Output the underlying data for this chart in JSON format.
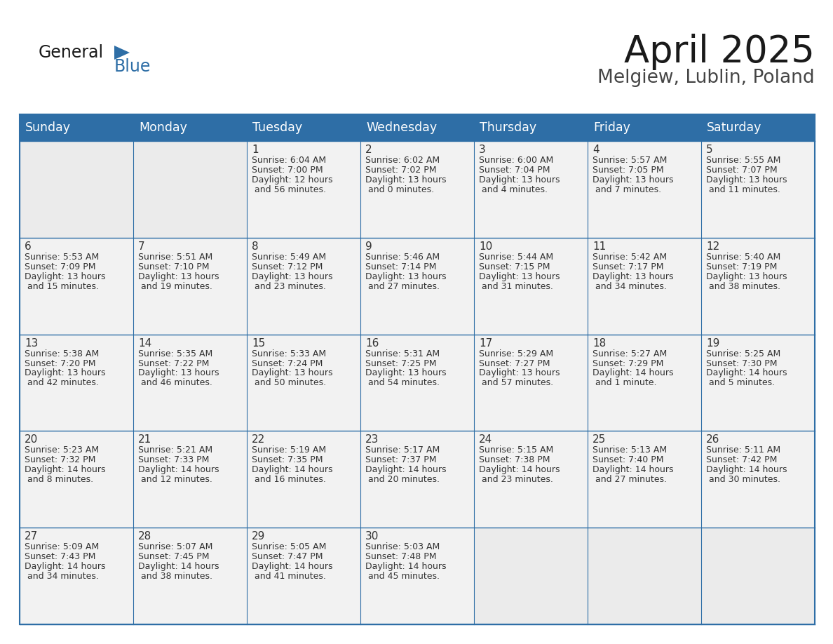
{
  "title": "April 2025",
  "subtitle": "Melgiew, Lublin, Poland",
  "header_bg_color": "#2e6ea6",
  "header_text_color": "#ffffff",
  "cell_bg_empty": "#ebebeb",
  "cell_bg_filled": "#f2f2f2",
  "border_color": "#2e6ea6",
  "text_color": "#333333",
  "days_of_week": [
    "Sunday",
    "Monday",
    "Tuesday",
    "Wednesday",
    "Thursday",
    "Friday",
    "Saturday"
  ],
  "title_fontsize": 38,
  "subtitle_fontsize": 19,
  "header_fontsize": 12.5,
  "day_num_fontsize": 11,
  "cell_text_fontsize": 9,
  "logo_general_color": "#1a1a1a",
  "logo_blue_color": "#2e6ea6",
  "calendar": [
    [
      {
        "day": "",
        "sunrise": "",
        "sunset": "",
        "daylight": ""
      },
      {
        "day": "",
        "sunrise": "",
        "sunset": "",
        "daylight": ""
      },
      {
        "day": "1",
        "sunrise": "6:04 AM",
        "sunset": "7:00 PM",
        "daylight": "12 hours and 56 minutes."
      },
      {
        "day": "2",
        "sunrise": "6:02 AM",
        "sunset": "7:02 PM",
        "daylight": "13 hours and 0 minutes."
      },
      {
        "day": "3",
        "sunrise": "6:00 AM",
        "sunset": "7:04 PM",
        "daylight": "13 hours and 4 minutes."
      },
      {
        "day": "4",
        "sunrise": "5:57 AM",
        "sunset": "7:05 PM",
        "daylight": "13 hours and 7 minutes."
      },
      {
        "day": "5",
        "sunrise": "5:55 AM",
        "sunset": "7:07 PM",
        "daylight": "13 hours and 11 minutes."
      }
    ],
    [
      {
        "day": "6",
        "sunrise": "5:53 AM",
        "sunset": "7:09 PM",
        "daylight": "13 hours and 15 minutes."
      },
      {
        "day": "7",
        "sunrise": "5:51 AM",
        "sunset": "7:10 PM",
        "daylight": "13 hours and 19 minutes."
      },
      {
        "day": "8",
        "sunrise": "5:49 AM",
        "sunset": "7:12 PM",
        "daylight": "13 hours and 23 minutes."
      },
      {
        "day": "9",
        "sunrise": "5:46 AM",
        "sunset": "7:14 PM",
        "daylight": "13 hours and 27 minutes."
      },
      {
        "day": "10",
        "sunrise": "5:44 AM",
        "sunset": "7:15 PM",
        "daylight": "13 hours and 31 minutes."
      },
      {
        "day": "11",
        "sunrise": "5:42 AM",
        "sunset": "7:17 PM",
        "daylight": "13 hours and 34 minutes."
      },
      {
        "day": "12",
        "sunrise": "5:40 AM",
        "sunset": "7:19 PM",
        "daylight": "13 hours and 38 minutes."
      }
    ],
    [
      {
        "day": "13",
        "sunrise": "5:38 AM",
        "sunset": "7:20 PM",
        "daylight": "13 hours and 42 minutes."
      },
      {
        "day": "14",
        "sunrise": "5:35 AM",
        "sunset": "7:22 PM",
        "daylight": "13 hours and 46 minutes."
      },
      {
        "day": "15",
        "sunrise": "5:33 AM",
        "sunset": "7:24 PM",
        "daylight": "13 hours and 50 minutes."
      },
      {
        "day": "16",
        "sunrise": "5:31 AM",
        "sunset": "7:25 PM",
        "daylight": "13 hours and 54 minutes."
      },
      {
        "day": "17",
        "sunrise": "5:29 AM",
        "sunset": "7:27 PM",
        "daylight": "13 hours and 57 minutes."
      },
      {
        "day": "18",
        "sunrise": "5:27 AM",
        "sunset": "7:29 PM",
        "daylight": "14 hours and 1 minute."
      },
      {
        "day": "19",
        "sunrise": "5:25 AM",
        "sunset": "7:30 PM",
        "daylight": "14 hours and 5 minutes."
      }
    ],
    [
      {
        "day": "20",
        "sunrise": "5:23 AM",
        "sunset": "7:32 PM",
        "daylight": "14 hours and 8 minutes."
      },
      {
        "day": "21",
        "sunrise": "5:21 AM",
        "sunset": "7:33 PM",
        "daylight": "14 hours and 12 minutes."
      },
      {
        "day": "22",
        "sunrise": "5:19 AM",
        "sunset": "7:35 PM",
        "daylight": "14 hours and 16 minutes."
      },
      {
        "day": "23",
        "sunrise": "5:17 AM",
        "sunset": "7:37 PM",
        "daylight": "14 hours and 20 minutes."
      },
      {
        "day": "24",
        "sunrise": "5:15 AM",
        "sunset": "7:38 PM",
        "daylight": "14 hours and 23 minutes."
      },
      {
        "day": "25",
        "sunrise": "5:13 AM",
        "sunset": "7:40 PM",
        "daylight": "14 hours and 27 minutes."
      },
      {
        "day": "26",
        "sunrise": "5:11 AM",
        "sunset": "7:42 PM",
        "daylight": "14 hours and 30 minutes."
      }
    ],
    [
      {
        "day": "27",
        "sunrise": "5:09 AM",
        "sunset": "7:43 PM",
        "daylight": "14 hours and 34 minutes."
      },
      {
        "day": "28",
        "sunrise": "5:07 AM",
        "sunset": "7:45 PM",
        "daylight": "14 hours and 38 minutes."
      },
      {
        "day": "29",
        "sunrise": "5:05 AM",
        "sunset": "7:47 PM",
        "daylight": "14 hours and 41 minutes."
      },
      {
        "day": "30",
        "sunrise": "5:03 AM",
        "sunset": "7:48 PM",
        "daylight": "14 hours and 45 minutes."
      },
      {
        "day": "",
        "sunrise": "",
        "sunset": "",
        "daylight": ""
      },
      {
        "day": "",
        "sunrise": "",
        "sunset": "",
        "daylight": ""
      },
      {
        "day": "",
        "sunrise": "",
        "sunset": "",
        "daylight": ""
      }
    ]
  ]
}
